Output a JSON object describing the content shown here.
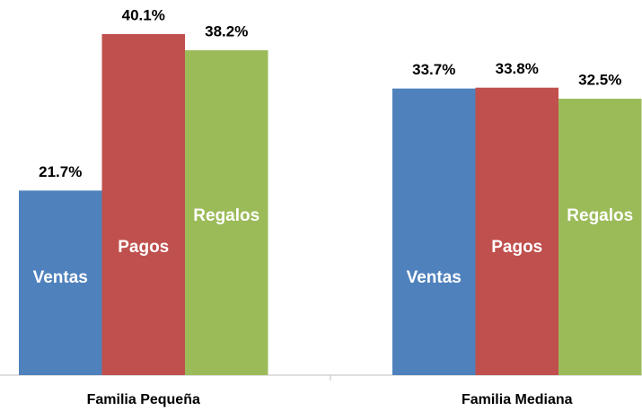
{
  "chart_data": {
    "type": "bar",
    "categories": [
      "Familia Pequeña",
      "Familia Mediana"
    ],
    "series": [
      {
        "name": "Ventas",
        "color": "#4f81bd",
        "values": [
          21.7,
          33.7
        ],
        "value_labels": [
          "21.7%",
          "33.7%"
        ]
      },
      {
        "name": "Pagos",
        "color": "#c0504d",
        "values": [
          40.1,
          33.8
        ],
        "value_labels": [
          "40.1%",
          "33.8%"
        ]
      },
      {
        "name": "Regalos",
        "color": "#9bbb59",
        "values": [
          38.2,
          32.5
        ],
        "value_labels": [
          "38.2%",
          "32.5%"
        ]
      }
    ]
  }
}
